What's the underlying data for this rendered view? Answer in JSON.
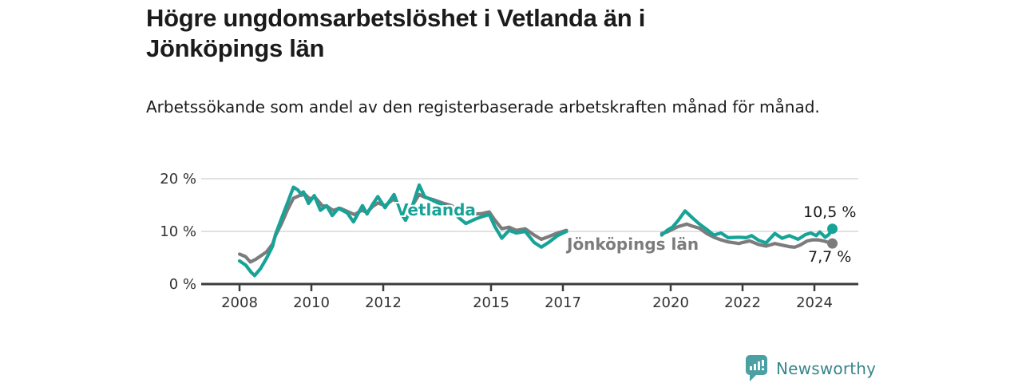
{
  "header": {
    "title": "Högre ungdomsarbetslöshet i Vetlanda än i Jönköpings län",
    "subtitle": "Arbetssökande som andel av den registerbaserade arbetskraften månad för månad."
  },
  "branding": {
    "name": "Newsworthy",
    "icon": "newsworthy-speech-bubble-bar-chart-icon",
    "icon_color": "#4aa0a2",
    "text_color": "#38868a"
  },
  "chart_data": {
    "type": "line",
    "title": "Högre ungdomsarbetslöshet i Vetlanda än i Jönköpings län",
    "subtitle": "Arbetssökande som andel av den registerbaserade arbetskraften månad för månad.",
    "unit": "%",
    "grid": true,
    "x_axis": {
      "ticks": [
        2008,
        2010,
        2012,
        2015,
        2017,
        2020,
        2022,
        2024
      ],
      "tick_labels": [
        "2008",
        "2010",
        "2012",
        "2015",
        "2017",
        "2020",
        "2022",
        "2024"
      ],
      "range": [
        2006.95,
        2025.3
      ]
    },
    "y_axis": {
      "ticks": [
        0,
        10,
        20
      ],
      "tick_labels": [
        "0 %",
        "10 %",
        "20 %"
      ],
      "range": [
        0,
        22.5
      ]
    },
    "colors": {
      "grid": "#e1e1e1",
      "axis": "#3b3b3b",
      "axis_text": "#333333"
    },
    "data_gap": {
      "from": 2017.1,
      "to": 2019.75
    },
    "series": [
      {
        "name": "Vetlanda",
        "color": "#17a398",
        "end_label": "10,5 %",
        "end_value": 10.5,
        "segments": [
          [
            [
              2008.0,
              4.4
            ],
            [
              2008.17,
              3.6
            ],
            [
              2008.33,
              2.2
            ],
            [
              2008.42,
              1.6
            ],
            [
              2008.58,
              2.9
            ],
            [
              2008.75,
              4.9
            ],
            [
              2008.92,
              7.2
            ],
            [
              2009.0,
              9.4
            ],
            [
              2009.17,
              12.5
            ],
            [
              2009.33,
              15.3
            ],
            [
              2009.5,
              18.4
            ],
            [
              2009.62,
              17.9
            ],
            [
              2009.7,
              17.2
            ],
            [
              2009.78,
              17.5
            ],
            [
              2009.92,
              15.3
            ],
            [
              2010.08,
              16.8
            ],
            [
              2010.25,
              14.0
            ],
            [
              2010.42,
              14.9
            ],
            [
              2010.58,
              13.0
            ],
            [
              2010.75,
              14.4
            ],
            [
              2011.0,
              13.5
            ],
            [
              2011.17,
              11.8
            ],
            [
              2011.42,
              14.9
            ],
            [
              2011.55,
              13.3
            ],
            [
              2011.7,
              15.1
            ],
            [
              2011.85,
              16.6
            ],
            [
              2012.05,
              14.5
            ],
            [
              2012.3,
              17.0
            ],
            [
              2012.5,
              13.4
            ],
            [
              2012.62,
              12.1
            ],
            [
              2012.8,
              14.6
            ],
            [
              2013.0,
              18.8
            ],
            [
              2013.15,
              16.6
            ],
            [
              2013.4,
              15.8
            ],
            [
              2013.65,
              15.0
            ],
            [
              2013.9,
              14.2
            ],
            [
              2014.1,
              12.6
            ],
            [
              2014.3,
              11.5
            ],
            [
              2014.55,
              12.3
            ],
            [
              2014.75,
              12.8
            ],
            [
              2014.95,
              13.2
            ],
            [
              2015.1,
              11.0
            ],
            [
              2015.3,
              8.7
            ],
            [
              2015.5,
              10.2
            ],
            [
              2015.7,
              9.7
            ],
            [
              2015.95,
              10.0
            ],
            [
              2016.2,
              7.9
            ],
            [
              2016.4,
              7.0
            ],
            [
              2016.6,
              7.9
            ],
            [
              2016.85,
              9.2
            ],
            [
              2017.1,
              10.0
            ]
          ],
          [
            [
              2019.75,
              9.3
            ],
            [
              2019.9,
              10.2
            ],
            [
              2020.05,
              10.8
            ],
            [
              2020.2,
              12.0
            ],
            [
              2020.4,
              13.9
            ],
            [
              2020.6,
              12.6
            ],
            [
              2020.8,
              11.4
            ],
            [
              2021.0,
              10.4
            ],
            [
              2021.2,
              9.3
            ],
            [
              2021.4,
              9.7
            ],
            [
              2021.6,
              8.8
            ],
            [
              2021.9,
              8.9
            ],
            [
              2022.1,
              8.8
            ],
            [
              2022.25,
              9.2
            ],
            [
              2022.45,
              8.3
            ],
            [
              2022.65,
              7.8
            ],
            [
              2022.9,
              9.6
            ],
            [
              2023.1,
              8.7
            ],
            [
              2023.3,
              9.2
            ],
            [
              2023.55,
              8.5
            ],
            [
              2023.75,
              9.4
            ],
            [
              2023.9,
              9.7
            ],
            [
              2024.05,
              9.2
            ],
            [
              2024.15,
              9.9
            ],
            [
              2024.3,
              8.9
            ],
            [
              2024.4,
              9.4
            ],
            [
              2024.5,
              10.5
            ]
          ]
        ]
      },
      {
        "name": "Jönköpings län",
        "color": "#7c7c7c",
        "end_label": "7,7 %",
        "end_value": 7.7,
        "segments": [
          [
            [
              2008.0,
              5.7
            ],
            [
              2008.17,
              5.2
            ],
            [
              2008.3,
              4.2
            ],
            [
              2008.45,
              4.7
            ],
            [
              2008.6,
              5.4
            ],
            [
              2008.75,
              6.1
            ],
            [
              2008.92,
              7.6
            ],
            [
              2009.0,
              9.2
            ],
            [
              2009.17,
              11.5
            ],
            [
              2009.33,
              14.0
            ],
            [
              2009.5,
              16.3
            ],
            [
              2009.67,
              16.8
            ],
            [
              2009.83,
              17.0
            ],
            [
              2009.95,
              16.2
            ],
            [
              2010.1,
              16.5
            ],
            [
              2010.3,
              14.9
            ],
            [
              2010.45,
              14.7
            ],
            [
              2010.6,
              14.0
            ],
            [
              2010.8,
              14.4
            ],
            [
              2011.0,
              13.8
            ],
            [
              2011.2,
              13.2
            ],
            [
              2011.4,
              14.0
            ],
            [
              2011.55,
              13.6
            ],
            [
              2011.7,
              14.7
            ],
            [
              2011.85,
              15.4
            ],
            [
              2012.05,
              14.9
            ],
            [
              2012.3,
              16.2
            ],
            [
              2012.5,
              14.2
            ],
            [
              2012.62,
              13.8
            ],
            [
              2012.8,
              14.8
            ],
            [
              2013.0,
              17.0
            ],
            [
              2013.15,
              16.5
            ],
            [
              2013.4,
              16.0
            ],
            [
              2013.65,
              15.4
            ],
            [
              2013.9,
              14.9
            ],
            [
              2014.1,
              13.8
            ],
            [
              2014.3,
              13.2
            ],
            [
              2014.55,
              13.3
            ],
            [
              2014.75,
              13.4
            ],
            [
              2014.95,
              13.7
            ],
            [
              2015.1,
              12.2
            ],
            [
              2015.3,
              10.5
            ],
            [
              2015.5,
              10.8
            ],
            [
              2015.7,
              10.2
            ],
            [
              2015.95,
              10.5
            ],
            [
              2016.2,
              9.3
            ],
            [
              2016.4,
              8.5
            ],
            [
              2016.6,
              9.0
            ],
            [
              2016.85,
              9.7
            ],
            [
              2017.1,
              10.2
            ]
          ],
          [
            [
              2019.75,
              9.6
            ],
            [
              2019.9,
              9.9
            ],
            [
              2020.05,
              10.4
            ],
            [
              2020.2,
              10.9
            ],
            [
              2020.45,
              11.4
            ],
            [
              2020.6,
              11.0
            ],
            [
              2020.8,
              10.6
            ],
            [
              2021.0,
              9.6
            ],
            [
              2021.2,
              8.9
            ],
            [
              2021.4,
              8.4
            ],
            [
              2021.6,
              8.0
            ],
            [
              2021.9,
              7.7
            ],
            [
              2022.0,
              7.9
            ],
            [
              2022.2,
              8.2
            ],
            [
              2022.45,
              7.5
            ],
            [
              2022.65,
              7.2
            ],
            [
              2022.9,
              7.7
            ],
            [
              2023.1,
              7.4
            ],
            [
              2023.3,
              7.1
            ],
            [
              2023.45,
              7.0
            ],
            [
              2023.6,
              7.4
            ],
            [
              2023.8,
              8.2
            ],
            [
              2023.95,
              8.4
            ],
            [
              2024.1,
              8.4
            ],
            [
              2024.25,
              8.2
            ],
            [
              2024.4,
              7.9
            ],
            [
              2024.5,
              7.7
            ]
          ]
        ]
      }
    ]
  }
}
